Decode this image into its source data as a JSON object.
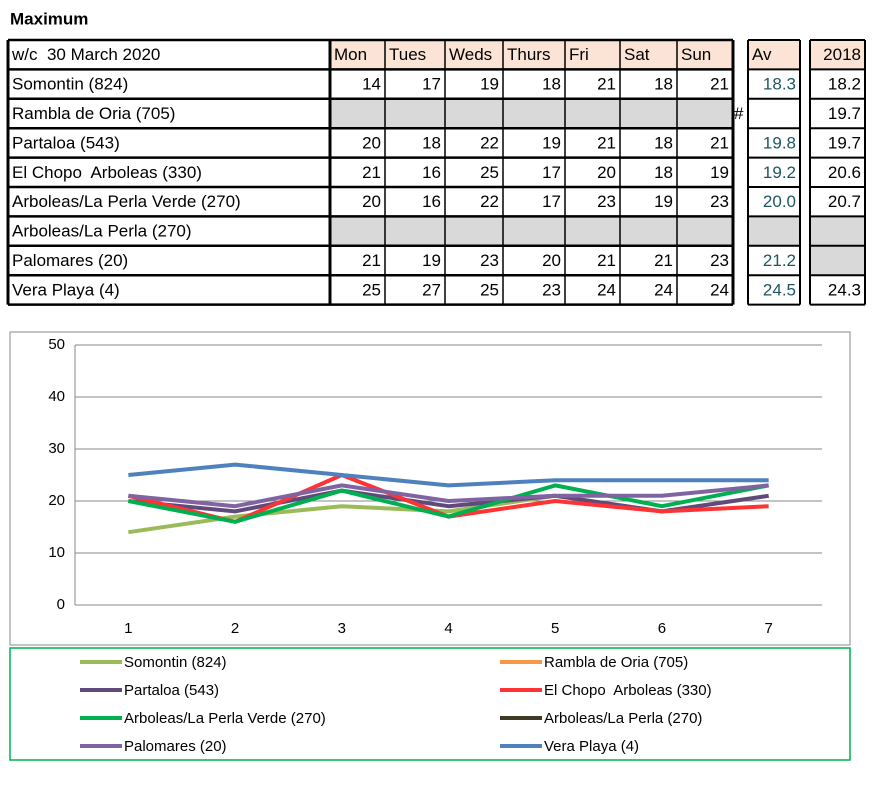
{
  "table": {
    "title": "Maximum",
    "header": {
      "label": "w/c  30 March 2020",
      "days": [
        "Mon",
        "Tues",
        "Weds",
        "Thurs",
        "Fri",
        "Sat",
        "Sun"
      ],
      "av": "Av",
      "y2018": "2018"
    },
    "rows": [
      {
        "name": "Somontin (824)",
        "values": [
          "14",
          "17",
          "19",
          "18",
          "21",
          "18",
          "21"
        ],
        "av": "18.3",
        "y2018": "18.2"
      },
      {
        "name": "Rambla de Oria (705)",
        "values": [
          null,
          null,
          null,
          null,
          null,
          null,
          null
        ],
        "note": "#",
        "y2018": "19.7"
      },
      {
        "name": "Partaloa (543)",
        "values": [
          "20",
          "18",
          "22",
          "19",
          "21",
          "18",
          "21"
        ],
        "av": "19.8",
        "y2018": "19.7"
      },
      {
        "name": "El Chopo  Arboleas (330)",
        "values": [
          "21",
          "16",
          "25",
          "17",
          "20",
          "18",
          "19"
        ],
        "av": "19.2",
        "y2018": "20.6"
      },
      {
        "name": "Arboleas/La Perla Verde (270)",
        "values": [
          "20",
          "16",
          "22",
          "17",
          "23",
          "19",
          "23"
        ],
        "av": "20.0",
        "y2018": "20.7"
      },
      {
        "name": "Arboleas/La Perla (270)",
        "values": [
          null,
          null,
          null,
          null,
          null,
          null,
          null
        ],
        "av": null,
        "y2018": null
      },
      {
        "name": "Palomares (20)",
        "values": [
          "21",
          "19",
          "23",
          "20",
          "21",
          "21",
          "23"
        ],
        "av": "21.2",
        "y2018": null
      },
      {
        "name": "Vera Playa (4)",
        "values": [
          "25",
          "27",
          "25",
          "23",
          "24",
          "24",
          "24"
        ],
        "av": "24.5",
        "y2018": "24.3"
      }
    ]
  },
  "chart_data": {
    "type": "line",
    "categories": [
      "1",
      "2",
      "3",
      "4",
      "5",
      "6",
      "7"
    ],
    "ylim": [
      0,
      50
    ],
    "yticks": [
      0,
      10,
      20,
      30,
      40,
      50
    ],
    "grid": true,
    "series": [
      {
        "name": "Somontin (824)",
        "color": "#9bbb59",
        "values": [
          14,
          17,
          19,
          18,
          21,
          18,
          21
        ]
      },
      {
        "name": "Rambla de Oria (705)",
        "color": "#f79646",
        "values": [
          null,
          null,
          null,
          null,
          null,
          null,
          null
        ]
      },
      {
        "name": "Partaloa (543)",
        "color": "#604a7b",
        "values": [
          20,
          18,
          22,
          19,
          21,
          18,
          21
        ]
      },
      {
        "name": "El Chopo  Arboleas (330)",
        "color": "#ff3333",
        "values": [
          21,
          16,
          25,
          17,
          20,
          18,
          19
        ]
      },
      {
        "name": "Arboleas/La Perla Verde (270)",
        "color": "#00b050",
        "values": [
          20,
          16,
          22,
          17,
          23,
          19,
          23
        ]
      },
      {
        "name": "Arboleas/La Perla (270)",
        "color": "#3f3a26",
        "values": [
          null,
          null,
          null,
          null,
          null,
          null,
          null
        ]
      },
      {
        "name": "Palomares (20)",
        "color": "#8064a2",
        "values": [
          21,
          19,
          23,
          20,
          21,
          21,
          23
        ]
      },
      {
        "name": "Vera Playa (4)",
        "color": "#4f81bd",
        "values": [
          25,
          27,
          25,
          23,
          24,
          24,
          24
        ]
      }
    ]
  }
}
